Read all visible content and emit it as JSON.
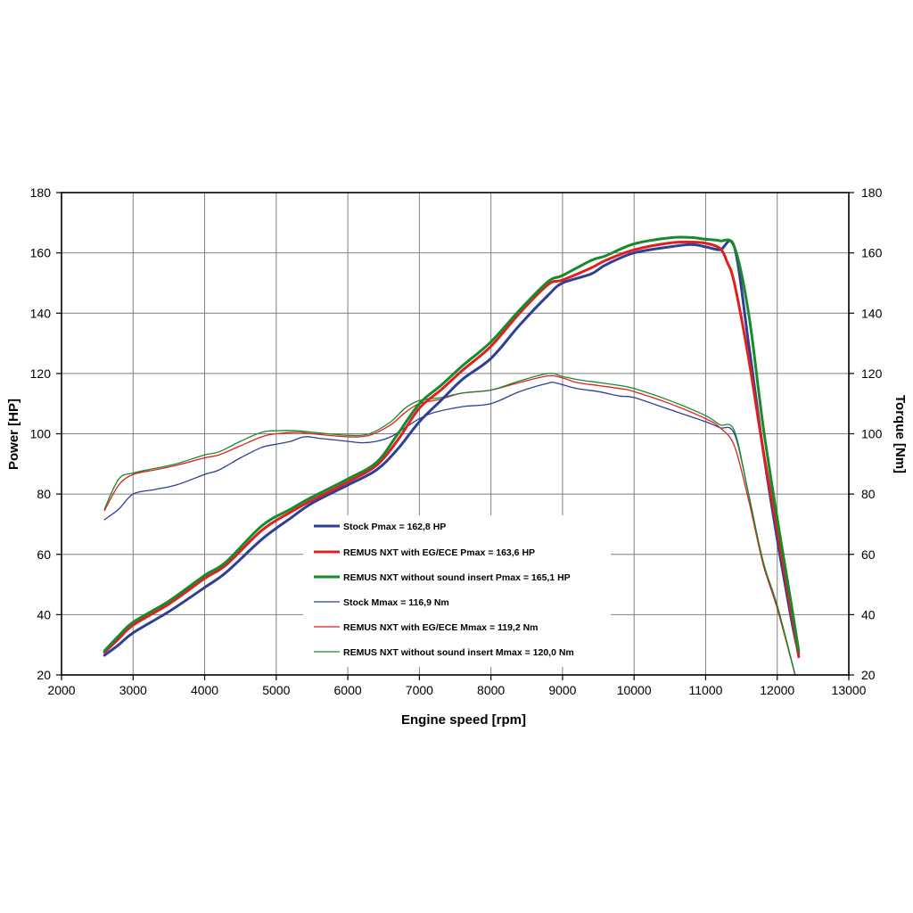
{
  "chart_data": {
    "type": "line",
    "title": "",
    "xlabel": "Engine speed [rpm]",
    "ylabel_left": "Power [HP]",
    "ylabel_right": "Torque [Nm]",
    "xlim": [
      2000,
      13000
    ],
    "ylim": [
      20,
      180
    ],
    "grid": true,
    "x_ticks": [
      "2000",
      "3000",
      "4000",
      "5000",
      "6000",
      "7000",
      "8000",
      "9000",
      "10000",
      "11000",
      "12000",
      "13000"
    ],
    "y_ticks": [
      "20",
      "40",
      "60",
      "80",
      "100",
      "120",
      "140",
      "160",
      "180"
    ],
    "series": [
      {
        "name": "Stock Pmax = 162,8 HP",
        "color": "#2e3f95",
        "width": "thick",
        "x": [
          2600,
          2800,
          3000,
          3500,
          4000,
          4300,
          4800,
          5200,
          5500,
          6000,
          6400,
          6700,
          7000,
          7300,
          7600,
          8000,
          8400,
          8800,
          9000,
          9400,
          9600,
          10000,
          10500,
          10800,
          11000,
          11200,
          11400,
          11600,
          11800,
          12000,
          12200,
          12300
        ],
        "y": [
          26.5,
          30,
          34,
          41,
          49,
          54,
          65,
          72,
          77,
          83,
          88,
          95,
          104,
          111,
          118,
          125,
          136,
          146,
          150,
          153,
          156,
          160,
          162,
          162.8,
          162,
          161,
          162,
          130,
          95,
          65,
          38,
          27
        ]
      },
      {
        "name": "REMUS NXT with EG/ECE Pmax = 163,6 HP",
        "color": "#e02020",
        "width": "thick",
        "x": [
          2600,
          2800,
          3000,
          3500,
          4000,
          4300,
          4800,
          5200,
          5500,
          6000,
          6400,
          6700,
          7000,
          7300,
          7600,
          8000,
          8400,
          8800,
          9000,
          9400,
          9600,
          10000,
          10500,
          10800,
          11000,
          11200,
          11300,
          11400,
          11600,
          11800,
          12000,
          12200,
          12300
        ],
        "y": [
          27.5,
          32,
          36.5,
          43.5,
          52,
          56.5,
          68,
          74,
          78,
          84,
          89.5,
          98,
          108.5,
          114.5,
          121,
          129,
          140,
          149.5,
          151,
          155,
          157.5,
          161,
          163.3,
          163.6,
          163.2,
          161.5,
          157,
          150,
          125,
          95,
          68,
          40,
          26
        ]
      },
      {
        "name": "REMUS NXT without sound insert Pmax = 165,1 HP",
        "color": "#178a2c",
        "width": "thick",
        "x": [
          2600,
          2800,
          3000,
          3500,
          4000,
          4300,
          4800,
          5200,
          5500,
          6000,
          6400,
          6700,
          7000,
          7300,
          7600,
          8000,
          8400,
          8800,
          9000,
          9400,
          9600,
          10000,
          10500,
          10800,
          11000,
          11200,
          11400,
          11600,
          11800,
          12000,
          12200,
          12300
        ],
        "y": [
          28,
          33,
          37.5,
          44.5,
          53,
          57.5,
          69.5,
          75,
          79,
          85,
          90.5,
          100,
          110,
          116,
          122.5,
          130.5,
          141,
          150.5,
          152.5,
          157.5,
          159,
          163,
          165,
          165.1,
          164.5,
          164,
          162,
          140,
          103,
          72,
          43,
          28
        ]
      },
      {
        "name": "Stock Mmax = 116,9 Nm",
        "color": "#2e3f95",
        "width": "thin",
        "x": [
          2600,
          2800,
          3000,
          3300,
          3600,
          4000,
          4200,
          4500,
          4800,
          5000,
          5200,
          5400,
          5600,
          6000,
          6200,
          6400,
          6600,
          6800,
          7000,
          7200,
          7600,
          8000,
          8400,
          8800,
          8900,
          9200,
          9500,
          9800,
          10000,
          10500,
          11000,
          11200,
          11400,
          11600,
          11800,
          12000,
          12250
        ],
        "y": [
          71.5,
          75,
          80,
          81.5,
          83,
          86.5,
          88,
          92,
          95.5,
          96.5,
          97.5,
          99,
          98.5,
          97.5,
          97,
          97.5,
          99,
          102,
          105,
          107,
          109,
          110,
          114,
          116.8,
          116.9,
          115,
          114,
          112.5,
          112,
          108,
          104,
          102,
          100,
          80,
          57,
          43,
          20
        ]
      },
      {
        "name": "REMUS NXT with  EG/ECE Mmax = 119,2 Nm",
        "color": "#e02020",
        "width": "thin",
        "x": [
          2600,
          2800,
          3000,
          3300,
          3600,
          4000,
          4200,
          4500,
          4800,
          5000,
          5300,
          5500,
          6000,
          6300,
          6600,
          6800,
          7000,
          7300,
          7600,
          8000,
          8400,
          8800,
          9000,
          9200,
          9500,
          9800,
          10000,
          10500,
          11000,
          11200,
          11400,
          11600,
          11800,
          12000,
          12250
        ],
        "y": [
          74.5,
          83,
          86.5,
          88,
          89.5,
          92,
          93,
          96,
          99,
          100,
          100.5,
          100,
          99,
          99.5,
          103,
          107,
          110,
          111.5,
          113.5,
          114.5,
          117,
          119.2,
          118.5,
          117,
          116,
          115,
          114,
          110,
          105,
          102,
          96,
          78,
          57,
          42,
          20
        ]
      },
      {
        "name": "REMUS NXT without sound insert Mmax = 120,0 Nm",
        "color": "#178a2c",
        "width": "thin",
        "x": [
          2600,
          2800,
          3000,
          3300,
          3600,
          4000,
          4200,
          4500,
          4800,
          5000,
          5300,
          5500,
          6000,
          6300,
          6600,
          6800,
          7000,
          7300,
          7600,
          8000,
          8400,
          8800,
          9000,
          9200,
          9500,
          9800,
          10000,
          10500,
          11000,
          11200,
          11400,
          11600,
          11800,
          12000,
          12250
        ],
        "y": [
          75,
          85,
          87,
          88.5,
          90,
          93,
          94,
          97.5,
          100.5,
          101,
          101,
          100.5,
          99.5,
          100,
          104,
          108.5,
          111,
          112,
          113.5,
          114.5,
          117.5,
          120,
          119,
          118,
          117,
          116,
          115,
          111,
          106,
          103,
          101,
          80,
          58,
          43,
          20
        ]
      }
    ]
  }
}
